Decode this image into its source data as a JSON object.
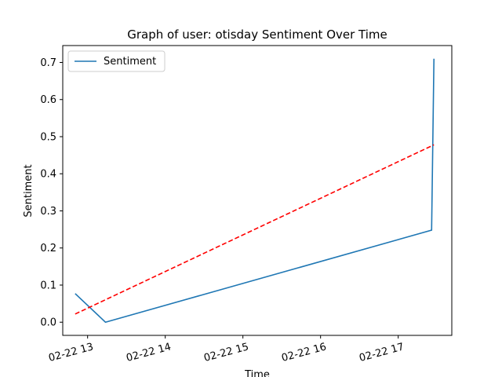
{
  "chart_data": {
    "type": "line",
    "title": "Graph of user: otisday Sentiment Over Time",
    "xlabel": "Time",
    "ylabel": "Sentiment",
    "x_ticks": [
      "02-22 13",
      "02-22 14",
      "02-22 15",
      "02-22 16",
      "02-22 17"
    ],
    "x_tick_hours": [
      13,
      14,
      15,
      16,
      17
    ],
    "x_range": [
      12.68,
      17.69
    ],
    "y_range": [
      -0.0355,
      0.7455
    ],
    "y_ticks": [
      "0.0",
      "0.1",
      "0.2",
      "0.3",
      "0.4",
      "0.5",
      "0.6",
      "0.7"
    ],
    "y_tick_values": [
      0.0,
      0.1,
      0.2,
      0.3,
      0.4,
      0.5,
      0.6,
      0.7
    ],
    "grid": false,
    "legend": {
      "position": "top-left",
      "entries": [
        "Sentiment"
      ]
    },
    "series": [
      {
        "name": "Sentiment",
        "color": "#1f77b4",
        "style": "solid",
        "x": [
          12.84,
          13.23,
          17.43,
          17.46
        ],
        "y": [
          0.077,
          0.0,
          0.248,
          0.71
        ]
      },
      {
        "color": "#ff0000",
        "style": "dashed",
        "x": [
          12.84,
          17.46
        ],
        "y": [
          0.022,
          0.478
        ]
      }
    ]
  }
}
